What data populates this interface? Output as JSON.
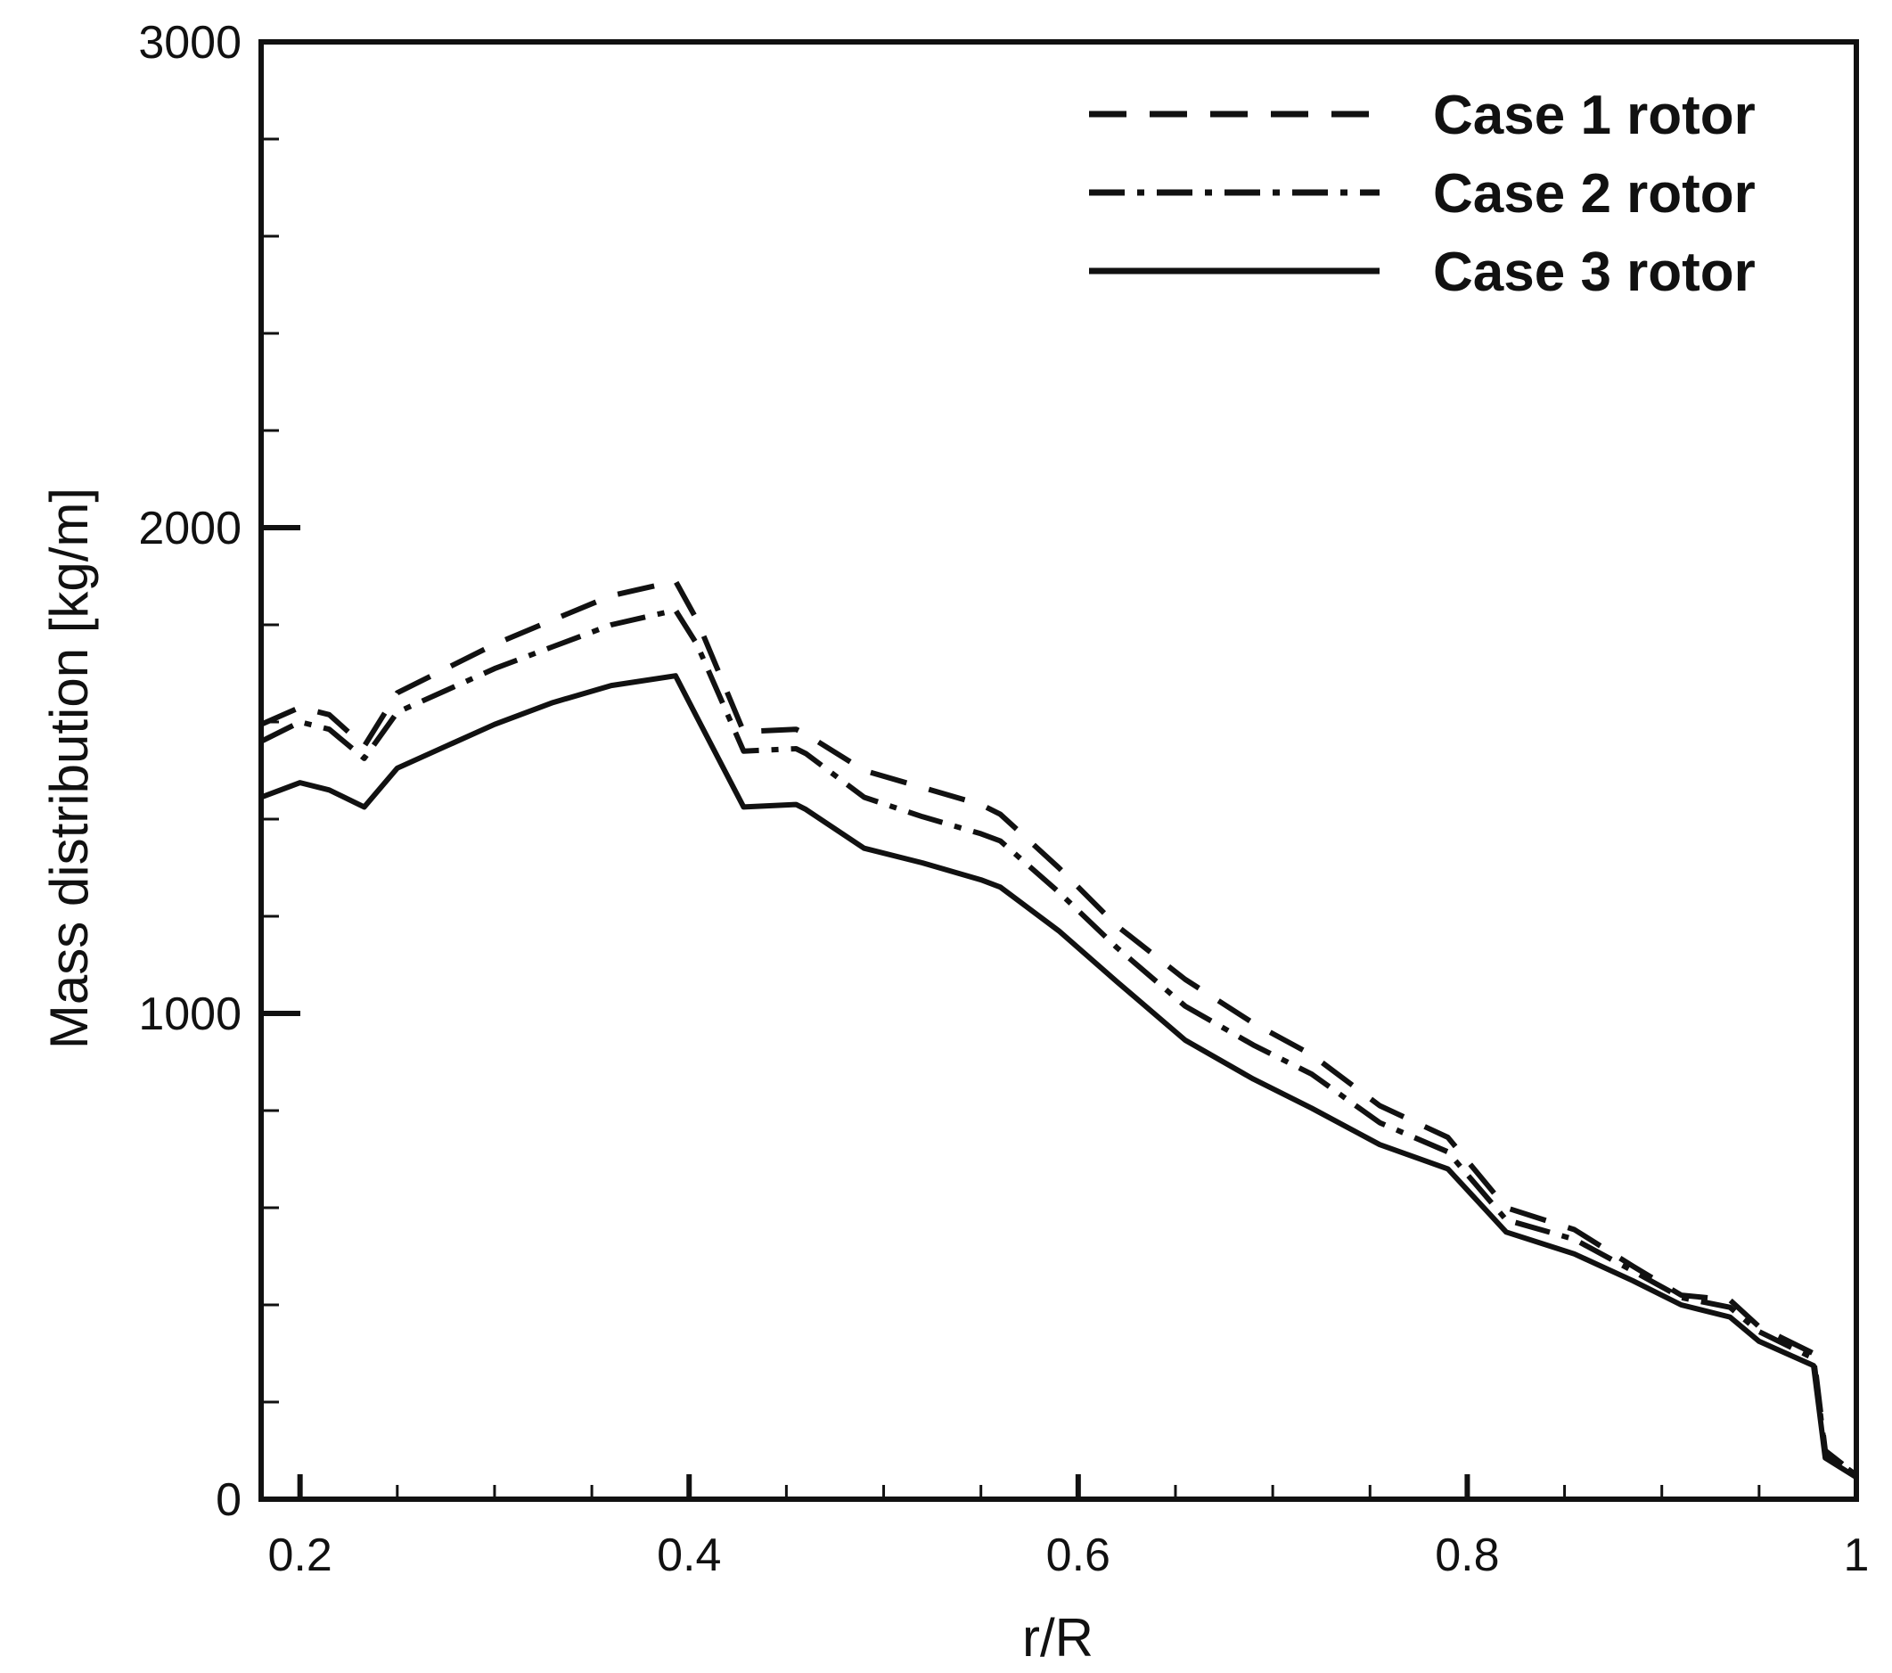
{
  "chart_data": {
    "type": "line",
    "title": "",
    "xlabel": "r/R",
    "ylabel": "Mass distribution [kg/m]",
    "xlim": [
      0.18,
      1.0
    ],
    "ylim": [
      0,
      3000
    ],
    "x_major_ticks": [
      0.2,
      0.4,
      0.6,
      0.8,
      1.0
    ],
    "x_tick_labels": [
      "0.2",
      "0.4",
      "0.6",
      "0.8",
      "1"
    ],
    "x_minor_ticks": [
      0.25,
      0.3,
      0.35,
      0.45,
      0.5,
      0.55,
      0.65,
      0.7,
      0.75,
      0.85,
      0.9,
      0.95
    ],
    "y_major_ticks": [
      0,
      1000,
      2000,
      3000
    ],
    "y_tick_labels": [
      "0",
      "1000",
      "2000",
      "3000"
    ],
    "y_minor_ticks": [
      200,
      400,
      600,
      800,
      1200,
      1400,
      1600,
      1800,
      2200,
      2400,
      2600,
      2800
    ],
    "grid": false,
    "legend_position": "top-right",
    "series": [
      {
        "name": "Case 1 rotor",
        "line_style": "dashed",
        "color": "#111111",
        "x": [
          0.18,
          0.2,
          0.215,
          0.233,
          0.25,
          0.275,
          0.3,
          0.33,
          0.36,
          0.393,
          0.404,
          0.428,
          0.455,
          0.46,
          0.49,
          0.52,
          0.55,
          0.56,
          0.59,
          0.62,
          0.655,
          0.69,
          0.72,
          0.755,
          0.79,
          0.82,
          0.855,
          0.885,
          0.91,
          0.935,
          0.95,
          0.978,
          0.984,
          1.0
        ],
        "y": [
          1595,
          1630,
          1615,
          1550,
          1660,
          1710,
          1760,
          1810,
          1860,
          1890,
          1810,
          1580,
          1585,
          1575,
          1500,
          1465,
          1430,
          1410,
          1300,
          1180,
          1070,
          980,
          915,
          810,
          745,
          600,
          555,
          480,
          420,
          410,
          355,
          300,
          100,
          50
        ]
      },
      {
        "name": "Case 2 rotor",
        "line_style": "dash-dot",
        "color": "#111111",
        "x": [
          0.18,
          0.2,
          0.215,
          0.233,
          0.25,
          0.275,
          0.3,
          0.33,
          0.36,
          0.393,
          0.404,
          0.428,
          0.455,
          0.46,
          0.49,
          0.52,
          0.55,
          0.56,
          0.59,
          0.62,
          0.655,
          0.69,
          0.72,
          0.755,
          0.79,
          0.82,
          0.855,
          0.885,
          0.91,
          0.935,
          0.95,
          0.978,
          0.984,
          1.0
        ],
        "y": [
          1560,
          1600,
          1585,
          1525,
          1620,
          1665,
          1710,
          1755,
          1800,
          1830,
          1760,
          1540,
          1545,
          1535,
          1445,
          1405,
          1370,
          1355,
          1250,
          1135,
          1015,
          935,
          875,
          775,
          715,
          575,
          535,
          470,
          415,
          395,
          345,
          290,
          95,
          50
        ]
      },
      {
        "name": "Case 3 rotor",
        "line_style": "solid",
        "color": "#111111",
        "x": [
          0.18,
          0.2,
          0.215,
          0.233,
          0.25,
          0.275,
          0.3,
          0.33,
          0.36,
          0.393,
          0.404,
          0.428,
          0.455,
          0.46,
          0.49,
          0.52,
          0.55,
          0.56,
          0.59,
          0.62,
          0.655,
          0.69,
          0.72,
          0.755,
          0.79,
          0.82,
          0.855,
          0.885,
          0.91,
          0.935,
          0.95,
          0.978,
          0.984,
          1.0
        ],
        "y": [
          1445,
          1475,
          1460,
          1425,
          1505,
          1550,
          1595,
          1640,
          1675,
          1695,
          1610,
          1425,
          1430,
          1420,
          1340,
          1310,
          1275,
          1260,
          1170,
          1065,
          945,
          865,
          805,
          730,
          680,
          550,
          505,
          450,
          400,
          375,
          325,
          275,
          85,
          45
        ]
      }
    ]
  }
}
